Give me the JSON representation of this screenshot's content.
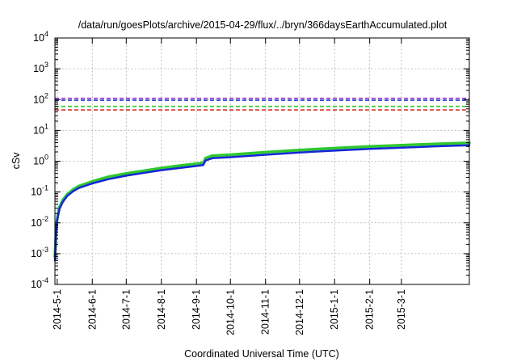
{
  "chart_data": {
    "type": "line",
    "title": "/data/run/goesPlots/archive/2015-04-29/flux/../bryn/366daysEarthAccumulated.plot",
    "xlabel": "Coordinated Universal Time (UTC)",
    "ylabel": "cSv",
    "y_scale": "log",
    "ylim": [
      0.0001,
      10000
    ],
    "xlim": [
      "2014-04-29",
      "2015-04-30"
    ],
    "grid": true,
    "y_ticks": [
      {
        "value": 0.0001,
        "base": "10",
        "exp": "-4"
      },
      {
        "value": 0.001,
        "base": "10",
        "exp": "-3"
      },
      {
        "value": 0.01,
        "base": "10",
        "exp": "-2"
      },
      {
        "value": 0.1,
        "base": "10",
        "exp": "-1"
      },
      {
        "value": 1,
        "base": "10",
        "exp": "0"
      },
      {
        "value": 10,
        "base": "10",
        "exp": "1"
      },
      {
        "value": 100,
        "base": "10",
        "exp": "2"
      },
      {
        "value": 1000,
        "base": "10",
        "exp": "3"
      },
      {
        "value": 10000,
        "base": "10",
        "exp": "4"
      }
    ],
    "x_ticks": [
      {
        "date": "2014-05-01",
        "label": "2014-5-1"
      },
      {
        "date": "2014-06-01",
        "label": "2014-6-1"
      },
      {
        "date": "2014-07-01",
        "label": "2014-7-1"
      },
      {
        "date": "2014-08-01",
        "label": "2014-8-1"
      },
      {
        "date": "2014-09-01",
        "label": "2014-9-1"
      },
      {
        "date": "2014-10-01",
        "label": "2014-10-1"
      },
      {
        "date": "2014-11-01",
        "label": "2014-11-1"
      },
      {
        "date": "2014-12-01",
        "label": "2014-12-1"
      },
      {
        "date": "2015-01-01",
        "label": "2015-1-1"
      },
      {
        "date": "2015-02-01",
        "label": "2015-2-1"
      },
      {
        "date": "2015-03-01",
        "label": "2015-3-1"
      }
    ],
    "reference_lines": [
      {
        "value": 110,
        "color": "#9a2fd0",
        "style": "dashed"
      },
      {
        "value": 95,
        "color": "#2a3fd6",
        "style": "dashed"
      },
      {
        "value": 60,
        "color": "#2ec82e",
        "style": "dashed"
      },
      {
        "value": 46,
        "color": "#e0342a",
        "style": "dashed"
      }
    ],
    "series": [
      {
        "color": "#2ec82e",
        "width": 3.5,
        "points": [
          [
            "2014-04-29",
            0.0008
          ],
          [
            "2014-04-30",
            0.005
          ],
          [
            "2014-05-01",
            0.014
          ],
          [
            "2014-05-03",
            0.032
          ],
          [
            "2014-05-06",
            0.055
          ],
          [
            "2014-05-10",
            0.085
          ],
          [
            "2014-05-15",
            0.12
          ],
          [
            "2014-05-20",
            0.155
          ],
          [
            "2014-06-01",
            0.22
          ],
          [
            "2014-06-15",
            0.31
          ],
          [
            "2014-07-01",
            0.4
          ],
          [
            "2014-07-15",
            0.48
          ],
          [
            "2014-08-01",
            0.6
          ],
          [
            "2014-08-15",
            0.7
          ],
          [
            "2014-09-01",
            0.83
          ],
          [
            "2014-09-07",
            0.88
          ],
          [
            "2014-09-09",
            1.25
          ],
          [
            "2014-09-12",
            1.38
          ],
          [
            "2014-09-15",
            1.5
          ],
          [
            "2014-10-01",
            1.62
          ],
          [
            "2014-11-01",
            1.95
          ],
          [
            "2014-12-01",
            2.3
          ],
          [
            "2015-01-01",
            2.65
          ],
          [
            "2015-02-01",
            3.0
          ],
          [
            "2015-03-01",
            3.3
          ],
          [
            "2015-04-01",
            3.65
          ],
          [
            "2015-04-30",
            3.95
          ]
        ]
      },
      {
        "color": "#1426d8",
        "width": 2.5,
        "points": [
          [
            "2014-04-29",
            0.0006
          ],
          [
            "2014-04-30",
            0.004
          ],
          [
            "2014-05-01",
            0.012
          ],
          [
            "2014-05-03",
            0.028
          ],
          [
            "2014-05-06",
            0.048
          ],
          [
            "2014-05-10",
            0.075
          ],
          [
            "2014-05-15",
            0.105
          ],
          [
            "2014-05-20",
            0.135
          ],
          [
            "2014-06-01",
            0.19
          ],
          [
            "2014-06-15",
            0.26
          ],
          [
            "2014-07-01",
            0.34
          ],
          [
            "2014-07-15",
            0.41
          ],
          [
            "2014-08-01",
            0.51
          ],
          [
            "2014-08-15",
            0.59
          ],
          [
            "2014-09-01",
            0.7
          ],
          [
            "2014-09-07",
            0.75
          ],
          [
            "2014-09-09",
            1.05
          ],
          [
            "2014-09-12",
            1.15
          ],
          [
            "2014-09-15",
            1.25
          ],
          [
            "2014-10-01",
            1.35
          ],
          [
            "2014-11-01",
            1.62
          ],
          [
            "2014-12-01",
            1.92
          ],
          [
            "2015-01-01",
            2.2
          ],
          [
            "2015-02-01",
            2.5
          ],
          [
            "2015-03-01",
            2.75
          ],
          [
            "2015-04-01",
            3.05
          ],
          [
            "2015-04-30",
            3.3
          ]
        ]
      }
    ]
  }
}
